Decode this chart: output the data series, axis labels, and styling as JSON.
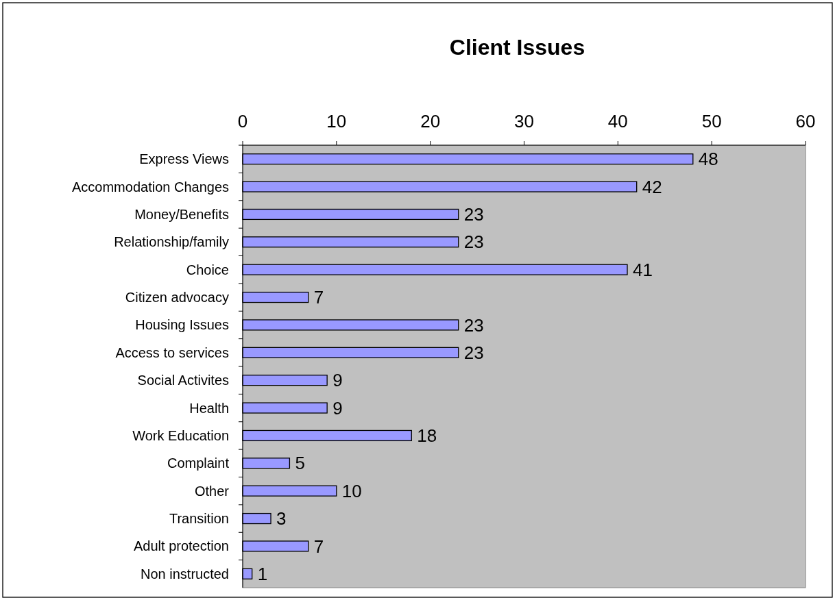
{
  "chart_data": {
    "type": "bar",
    "title": "Client Issues",
    "orientation": "horizontal",
    "categories": [
      "Express Views",
      "Accommodation Changes",
      "Money/Benefits",
      "Relationship/family",
      "Choice",
      "Citizen advocacy",
      "Housing Issues",
      "Access to services",
      "Social Activites",
      "Health",
      "Work Education",
      "Complaint",
      "Other",
      "Transition",
      "Adult protection",
      "Non instructed"
    ],
    "values": [
      48,
      42,
      23,
      23,
      41,
      7,
      23,
      23,
      9,
      9,
      18,
      5,
      10,
      3,
      7,
      1
    ],
    "color": "#9999ff",
    "xlim": [
      0,
      60
    ],
    "xticks": [
      0,
      10,
      20,
      30,
      40,
      50,
      60
    ],
    "data_labels": true,
    "grid": false
  }
}
